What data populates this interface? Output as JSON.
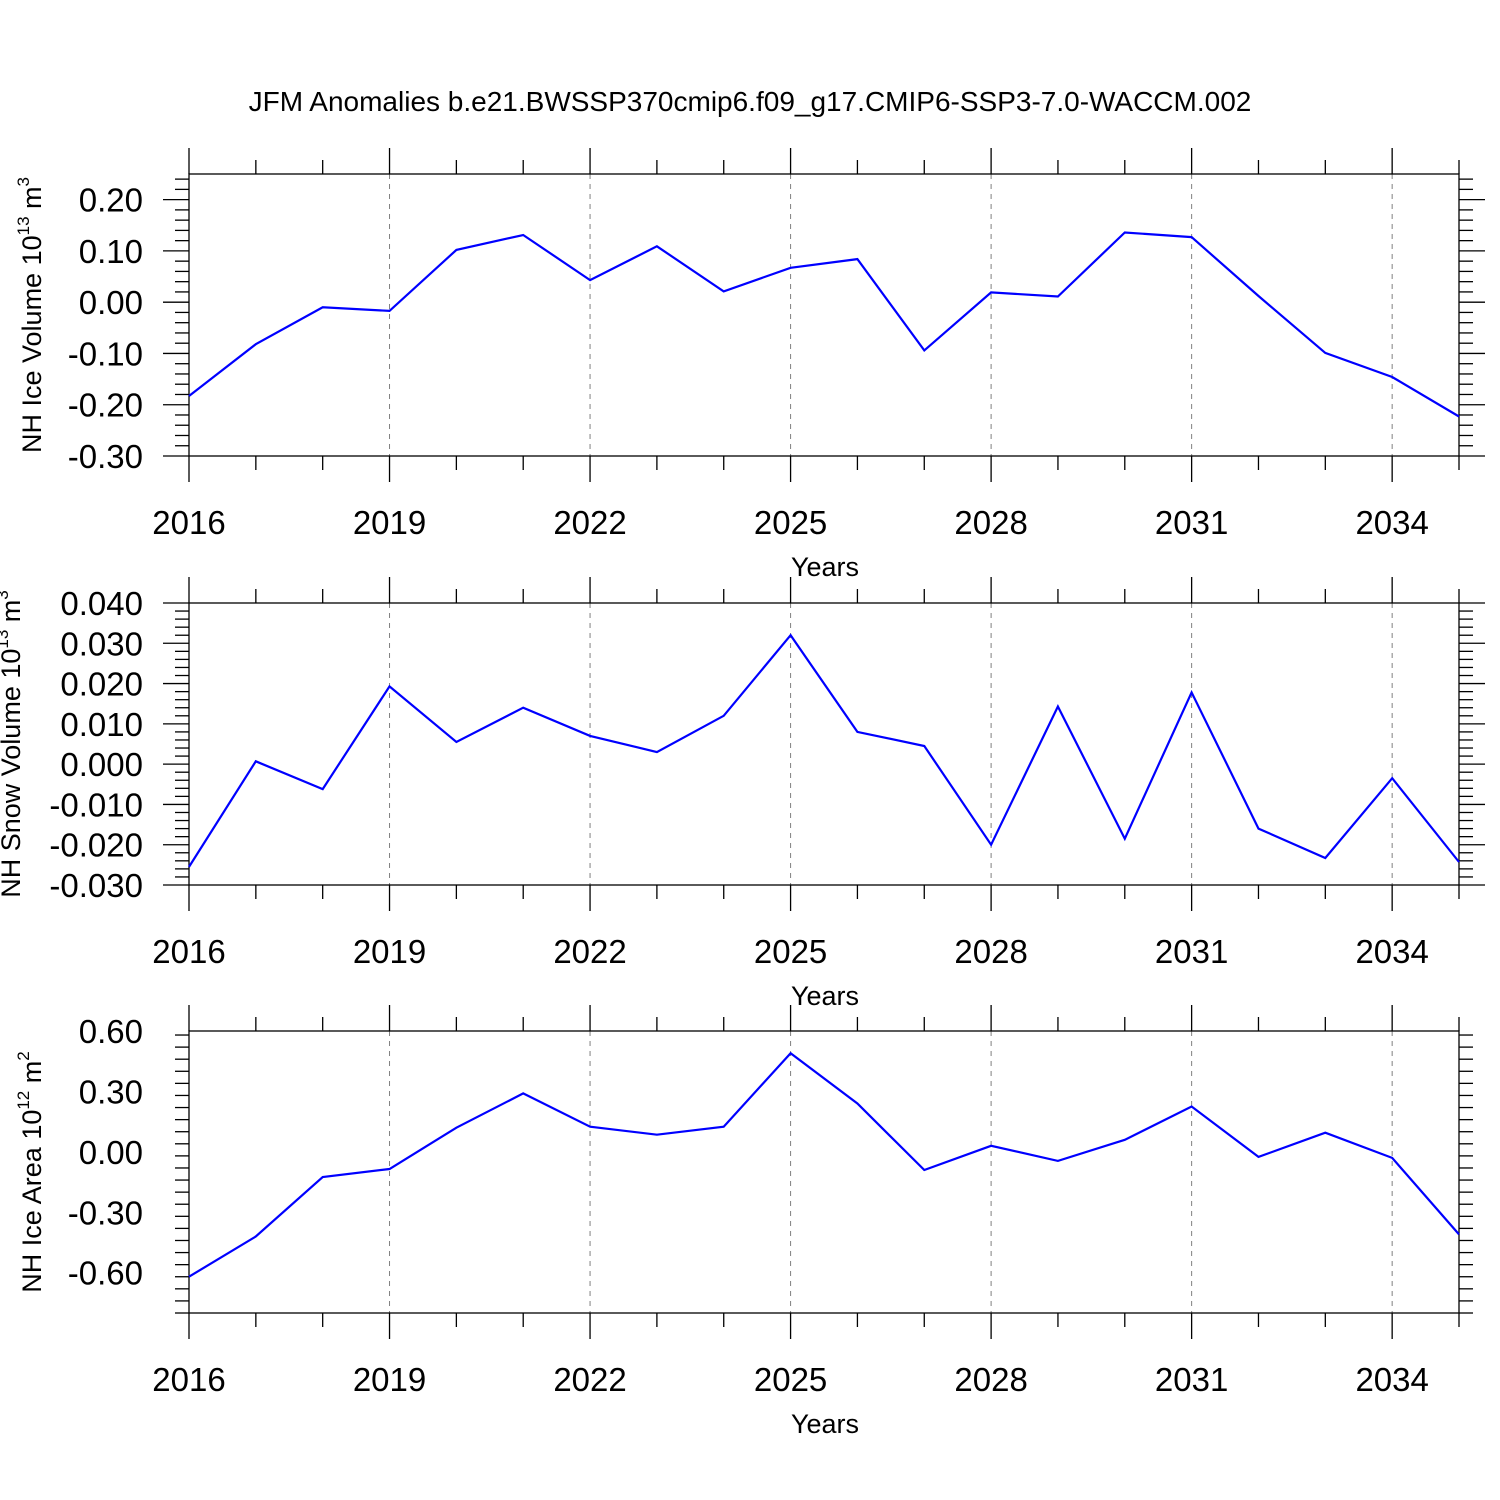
{
  "figure_title": "JFM Anomalies b.e21.BWSSP370cmip6.f09_g17.CMIP6-SSP3-7.0-WACCM.002",
  "colors": {
    "line": "#0000ff",
    "axis": "#000000",
    "grid": "#808080"
  },
  "chart_data": [
    {
      "type": "line",
      "ylabel": {
        "main": "NH Ice Volume 10",
        "exp": "13",
        "unit": " m",
        "unit_exp": "3"
      },
      "xlabel": "Years",
      "x": [
        2016,
        2017,
        2018,
        2019,
        2020,
        2021,
        2022,
        2023,
        2024,
        2025,
        2026,
        2027,
        2028,
        2029,
        2030,
        2031,
        2032,
        2033,
        2034,
        2035
      ],
      "series": [
        {
          "values": [
            -0.183,
            -0.082,
            -0.01,
            -0.017,
            0.102,
            0.131,
            0.043,
            0.109,
            0.021,
            0.067,
            0.084,
            -0.094,
            0.019,
            0.011,
            0.136,
            0.127,
            0.012,
            -0.099,
            -0.146,
            -0.223
          ]
        }
      ],
      "xlim": [
        2016,
        2035
      ],
      "ylim": [
        -0.3,
        0.25
      ],
      "xticks": [
        "2016",
        "2019",
        "2022",
        "2025",
        "2028",
        "2031",
        "2034"
      ],
      "yticks": [
        "-0.30",
        "-0.20",
        "-0.10",
        "0.00",
        "0.10",
        "0.20"
      ],
      "grid": "vertical-dashed-at-labeled-ticks"
    },
    {
      "type": "line",
      "ylabel": {
        "main": "NH Snow Volume 10",
        "exp": "13",
        "unit": " m",
        "unit_exp": "3"
      },
      "xlabel": "Years",
      "x": [
        2016,
        2017,
        2018,
        2019,
        2020,
        2021,
        2022,
        2023,
        2024,
        2025,
        2026,
        2027,
        2028,
        2029,
        2030,
        2031,
        2032,
        2033,
        2034,
        2035
      ],
      "series": [
        {
          "values": [
            -0.0255,
            0.0007,
            -0.0062,
            0.0193,
            0.0055,
            0.014,
            0.007,
            0.003,
            0.012,
            0.032,
            0.008,
            0.0045,
            -0.02,
            0.0143,
            -0.0185,
            0.0178,
            -0.016,
            -0.0233,
            -0.0035,
            -0.0243
          ]
        }
      ],
      "xlim": [
        2016,
        2035
      ],
      "ylim": [
        -0.03,
        0.04
      ],
      "xticks": [
        "2016",
        "2019",
        "2022",
        "2025",
        "2028",
        "2031",
        "2034"
      ],
      "yticks": [
        "-0.030",
        "-0.020",
        "-0.010",
        "0.000",
        "0.010",
        "0.020",
        "0.030",
        "0.040"
      ],
      "grid": "vertical-dashed-at-labeled-ticks"
    },
    {
      "type": "line",
      "ylabel": {
        "main": "NH Ice Area 10",
        "exp": "12",
        "unit": " m",
        "unit_exp": "2"
      },
      "xlabel": "Years",
      "x": [
        2016,
        2017,
        2018,
        2019,
        2020,
        2021,
        2022,
        2023,
        2024,
        2025,
        2026,
        2027,
        2028,
        2029,
        2030,
        2031,
        2032,
        2033,
        2034,
        2035
      ],
      "series": [
        {
          "values": [
            -0.62,
            -0.42,
            -0.125,
            -0.085,
            0.12,
            0.29,
            0.125,
            0.085,
            0.125,
            0.49,
            0.24,
            -0.09,
            0.03,
            -0.045,
            0.06,
            0.225,
            -0.025,
            0.095,
            -0.03,
            -0.41
          ]
        }
      ],
      "xlim": [
        2016,
        2035
      ],
      "ylim": [
        -0.8,
        0.6
      ],
      "xticks": [
        "2016",
        "2019",
        "2022",
        "2025",
        "2028",
        "2031",
        "2034"
      ],
      "yticks": [
        "-0.60",
        "-0.30",
        "0.00",
        "0.30",
        "0.60"
      ],
      "grid": "vertical-dashed-at-labeled-ticks"
    }
  ]
}
